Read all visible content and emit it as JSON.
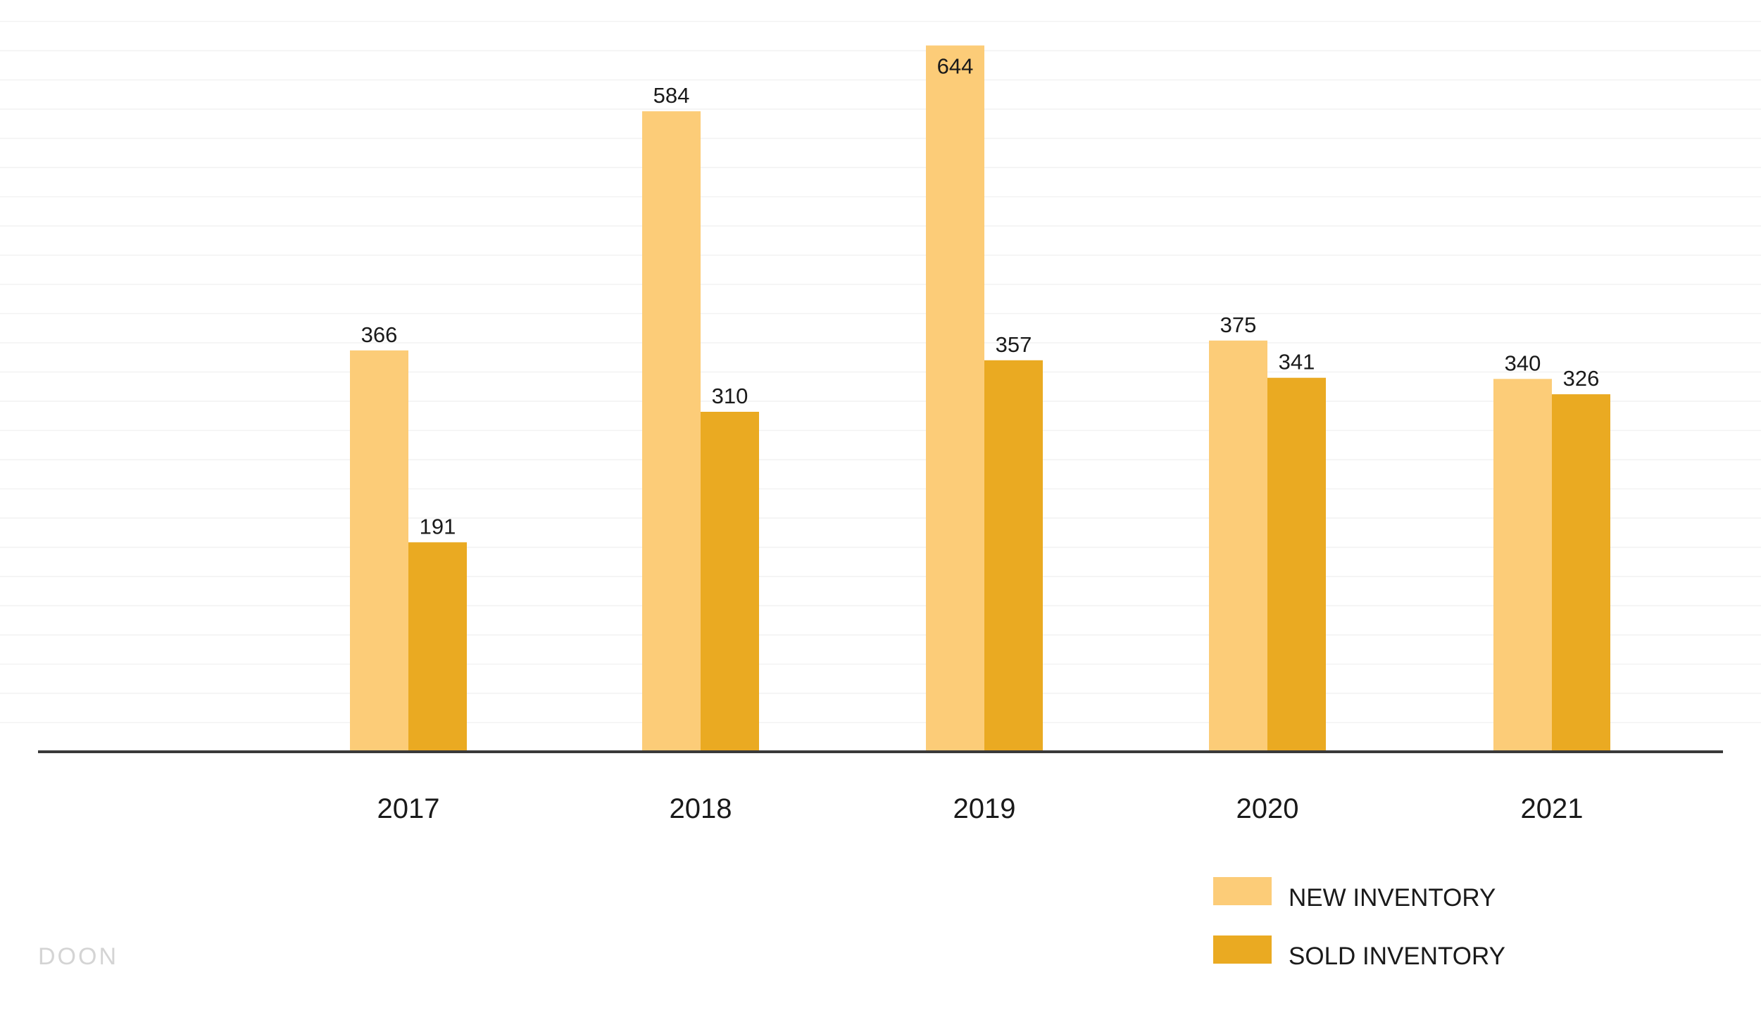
{
  "chart_data": {
    "type": "bar",
    "categories": [
      "2017",
      "2018",
      "2019",
      "2020",
      "2021"
    ],
    "series": [
      {
        "name": "NEW INVENTORY",
        "color": "#FCCC78",
        "values": [
          366,
          584,
          644,
          375,
          340
        ]
      },
      {
        "name": "SOLD INVENTORY",
        "color": "#EAAA22",
        "values": [
          191,
          310,
          357,
          341,
          326
        ]
      }
    ],
    "ylim": [
      0,
      650
    ],
    "grid": true,
    "legend": "bottom-right",
    "data_labels": true
  },
  "watermark": "DOON"
}
